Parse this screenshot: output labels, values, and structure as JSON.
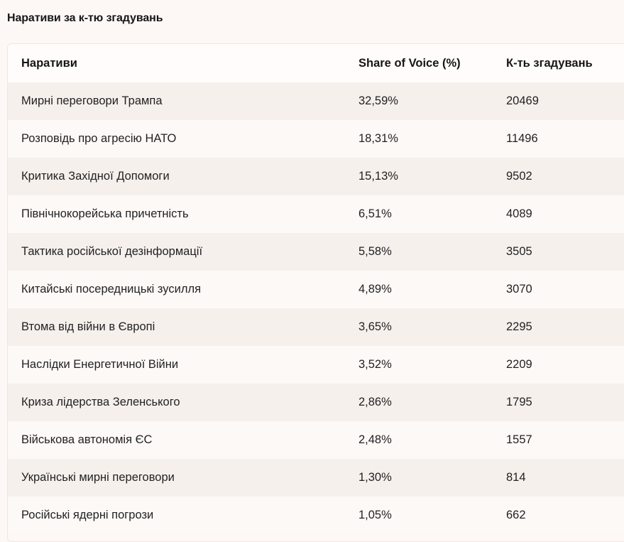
{
  "title": "Наративи за к-тю згадувань",
  "table": {
    "headers": [
      "Наративи",
      "Share of Voice (%)",
      "К-ть згадувань"
    ],
    "rows": [
      [
        "Мирні переговори Трампа",
        "32,59%",
        "20469"
      ],
      [
        "Розповідь про агресію НАТО",
        "18,31%",
        "11496"
      ],
      [
        "Критика Західної Допомоги",
        "15,13%",
        "9502"
      ],
      [
        "Північнокорейська причетність",
        "6,51%",
        "4089"
      ],
      [
        "Тактика російської дезінформації",
        "5,58%",
        "3505"
      ],
      [
        "Китайські посередницькі зусилля",
        "4,89%",
        "3070"
      ],
      [
        "Втома від війни в Європі",
        "3,65%",
        "2295"
      ],
      [
        "Наслідки Енергетичної Війни",
        "3,52%",
        "2209"
      ],
      [
        "Криза лідерства Зеленського",
        "2,86%",
        "1795"
      ],
      [
        "Військова автономія ЄС",
        "2,48%",
        "1557"
      ],
      [
        "Українські мирні переговори",
        "1,30%",
        "814"
      ],
      [
        "Російські ядерні погрози",
        "1,05%",
        "662"
      ]
    ]
  },
  "colors": {
    "background": "#fdf8f6",
    "row_stripe": "#f6f0ed",
    "text": "#1a1a1a"
  }
}
